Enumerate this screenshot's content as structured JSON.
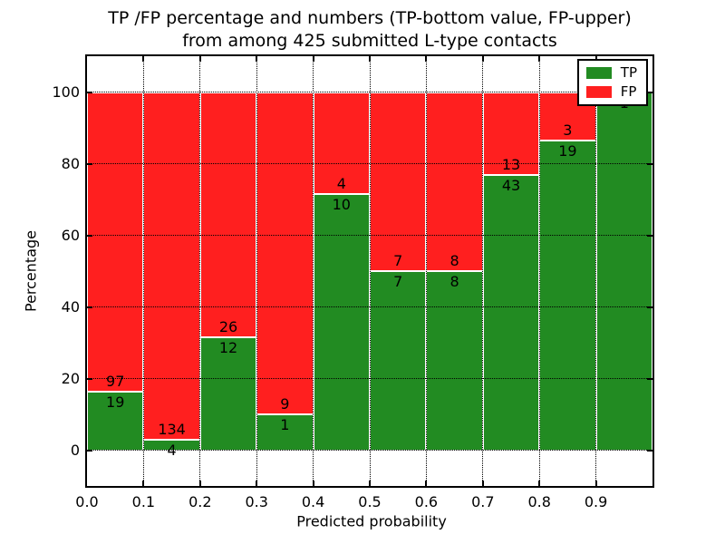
{
  "figure": {
    "title_line1": "TP /FP percentage and numbers (TP-bottom value, FP-upper)",
    "title_line2": "from among 425 submitted L-type contacts"
  },
  "chart_data": {
    "type": "bar",
    "stacked": true,
    "title": "TP /FP percentage and numbers (TP-bottom value, FP-upper) from among 425 submitted L-type contacts",
    "xlabel": "Predicted probability",
    "ylabel": "Percentage",
    "xlim": [
      0.0,
      1.0
    ],
    "ylim": [
      -10,
      110
    ],
    "bin_width": 0.1,
    "grid": "dotted",
    "legend_position": "upper right",
    "xticks": [
      "0.0",
      "0.1",
      "0.2",
      "0.3",
      "0.4",
      "0.5",
      "0.6",
      "0.7",
      "0.8",
      "0.9"
    ],
    "yticks": [
      0,
      20,
      40,
      60,
      80,
      100
    ],
    "series": [
      {
        "name": "TP",
        "color": "#228b22",
        "counts": [
          19,
          4,
          12,
          1,
          10,
          7,
          8,
          43,
          19,
          1
        ]
      },
      {
        "name": "FP",
        "color": "#ff1f1f",
        "counts": [
          97,
          134,
          26,
          9,
          4,
          7,
          8,
          13,
          3,
          0
        ]
      }
    ],
    "bins": [
      {
        "x0": 0.0,
        "x1": 0.1,
        "tp": 19,
        "fp": 97,
        "tp_pct": 16.38
      },
      {
        "x0": 0.1,
        "x1": 0.2,
        "tp": 4,
        "fp": 134,
        "tp_pct": 2.9
      },
      {
        "x0": 0.2,
        "x1": 0.3,
        "tp": 12,
        "fp": 26,
        "tp_pct": 31.58
      },
      {
        "x0": 0.3,
        "x1": 0.4,
        "tp": 1,
        "fp": 9,
        "tp_pct": 10.0
      },
      {
        "x0": 0.4,
        "x1": 0.5,
        "tp": 10,
        "fp": 4,
        "tp_pct": 71.43
      },
      {
        "x0": 0.5,
        "x1": 0.6,
        "tp": 7,
        "fp": 7,
        "tp_pct": 50.0
      },
      {
        "x0": 0.6,
        "x1": 0.7,
        "tp": 8,
        "fp": 8,
        "tp_pct": 50.0
      },
      {
        "x0": 0.7,
        "x1": 0.8,
        "tp": 43,
        "fp": 13,
        "tp_pct": 76.79
      },
      {
        "x0": 0.8,
        "x1": 0.9,
        "tp": 19,
        "fp": 3,
        "tp_pct": 86.36
      },
      {
        "x0": 0.9,
        "x1": 1.0,
        "tp": 1,
        "fp": 0,
        "tp_pct": 100.0
      }
    ]
  }
}
